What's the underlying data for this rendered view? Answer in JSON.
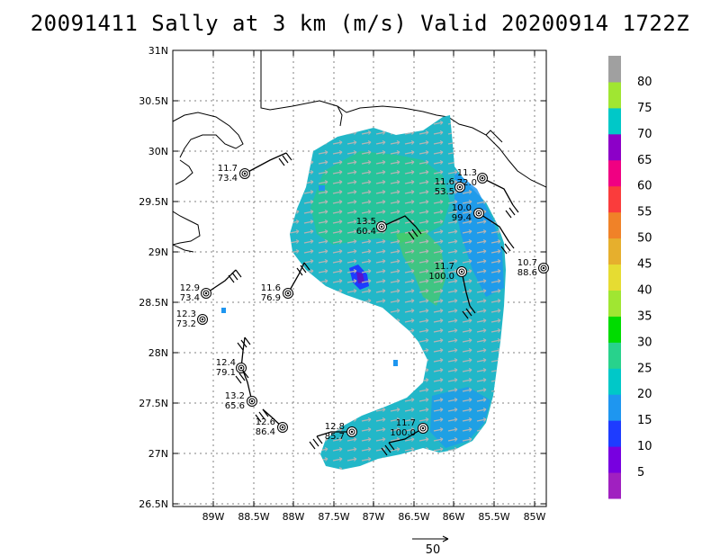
{
  "title": "20091411 Sally at 3 km (m/s) Valid 20200914 1722Z",
  "lat_labels": [
    "31N",
    "30.5N",
    "30N",
    "29.5N",
    "29N",
    "28.5N",
    "28N",
    "27.5N",
    "27N",
    "26.5N"
  ],
  "lon_labels": [
    "89W",
    "88.5W",
    "88W",
    "87.5W",
    "87W",
    "86.5W",
    "86W",
    "85.5W",
    "85W"
  ],
  "colorbar": {
    "labels": [
      "5",
      "10",
      "15",
      "20",
      "25",
      "30",
      "35",
      "40",
      "45",
      "50",
      "55",
      "60",
      "65",
      "70",
      "75",
      "80"
    ],
    "colors": [
      "#a020c0",
      "#7800e0",
      "#1e3cff",
      "#1e96f0",
      "#00c8c8",
      "#28d28c",
      "#00dc00",
      "#a0e632",
      "#e6dc32",
      "#e6af2d",
      "#f08228",
      "#fa3c3c",
      "#f00082",
      "#8c00c8",
      "#00c8c8",
      "#a0e632",
      "#a0a0a0"
    ]
  },
  "stations": [
    {
      "top": "11.7",
      "bottom": "73.4"
    },
    {
      "top": "11.3",
      "bottom": "72.0"
    },
    {
      "top": "11.6",
      "bottom": "53.5"
    },
    {
      "top": "10.0",
      "bottom": "99.4"
    },
    {
      "top": "13.5",
      "bottom": "60.4"
    },
    {
      "top": "10.7",
      "bottom": "88.6"
    },
    {
      "top": "11.7",
      "bottom": "100.0"
    },
    {
      "top": "12.9",
      "bottom": "73.4"
    },
    {
      "top": "11.6",
      "bottom": "76.9"
    },
    {
      "top": "12.3",
      "bottom": "73.2"
    },
    {
      "top": "12.4",
      "bottom": "79.1"
    },
    {
      "top": "13.2",
      "bottom": "65.6"
    },
    {
      "top": "12.6",
      "bottom": "86.4"
    },
    {
      "top": "12.8",
      "bottom": "85.7"
    },
    {
      "top": "11.7",
      "bottom": "100.0"
    }
  ],
  "reference_vector_label": "50"
}
